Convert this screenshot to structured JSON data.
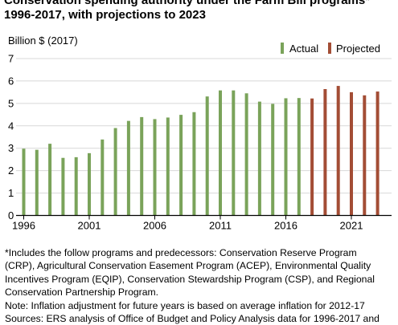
{
  "title_lines": [
    "Conservation spending authority under the Farm Bill programs*",
    "1996-2017, with projections to 2023"
  ],
  "footnote_lines": [
    "*Includes the follow programs and predecessors: Conservation Reserve Program",
    "(CRP), Agricultural Conservation Easement Program (ACEP), Environmental Quality",
    "Incentives Program (EQIP), Conservation Stewardship Program (CSP), and Regional",
    "Conservation Partnership Program.",
    "Note:  Inflation adjustment for future years is based on average inflation for 2012-17",
    "Sources: ERS analysis of Office of Budget and Policy Analysis data for 1996-2017 and"
  ],
  "colors": {
    "actual": "#7aa35a",
    "projected": "#a34d35",
    "gridline": "#d8d8d8",
    "axis": "#000000"
  },
  "chart_data": {
    "type": "bar",
    "ylabel": "Billion $ (2017)",
    "ylim": [
      0,
      7
    ],
    "yticks": [
      "0",
      "1",
      "2",
      "3",
      "4",
      "5",
      "6",
      "7"
    ],
    "xticks": [
      "1996",
      "2001",
      "2006",
      "2011",
      "2016",
      "2021"
    ],
    "grid": true,
    "legend_position": "top-right",
    "categories": [
      1996,
      1997,
      1998,
      1999,
      2000,
      2001,
      2002,
      2003,
      2004,
      2005,
      2006,
      2007,
      2008,
      2009,
      2010,
      2011,
      2012,
      2013,
      2014,
      2015,
      2016,
      2017,
      2018,
      2019,
      2020,
      2021,
      2022,
      2023
    ],
    "series": [
      {
        "name": "Actual",
        "color": "#7aa35a",
        "x": [
          1996,
          1997,
          1998,
          1999,
          2000,
          2001,
          2002,
          2003,
          2004,
          2005,
          2006,
          2007,
          2008,
          2009,
          2010,
          2011,
          2012,
          2013,
          2014,
          2015,
          2016,
          2017
        ],
        "values": [
          2.98,
          2.93,
          3.2,
          2.57,
          2.6,
          2.78,
          3.39,
          3.9,
          4.22,
          4.39,
          4.3,
          4.37,
          4.49,
          4.61,
          5.31,
          5.58,
          5.58,
          5.45,
          5.08,
          4.98,
          5.23,
          5.24
        ]
      },
      {
        "name": "Projected",
        "color": "#a34d35",
        "x": [
          2018,
          2019,
          2020,
          2021,
          2022,
          2023
        ],
        "values": [
          5.22,
          5.64,
          5.78,
          5.5,
          5.36,
          5.53
        ]
      }
    ]
  }
}
